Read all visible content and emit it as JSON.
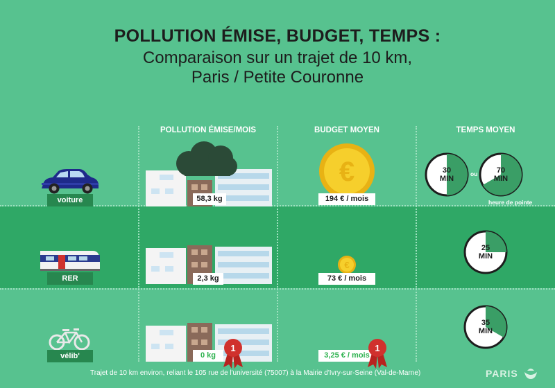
{
  "title": {
    "line1": "POLLUTION ÉMISE, BUDGET, TEMPS :",
    "line2": "Comparaison sur un trajet de 10 km,",
    "line3": "Paris / Petite Couronne"
  },
  "columns": {
    "pollution": "POLLUTION ÉMISE/MOIS",
    "budget": "BUDGET MOYEN",
    "temps": "TEMPS MOYEN"
  },
  "rows": [
    {
      "label": "voiture",
      "pollution": "58,3 kg",
      "budget": "194 € / mois",
      "time1": "30",
      "time2": "70",
      "unit": "MIN",
      "ou": "ou",
      "peak_label": "heure de pointe"
    },
    {
      "label": "RER",
      "pollution": "2,3 kg",
      "budget": "73 € / mois",
      "time1": "25",
      "unit": "MIN"
    },
    {
      "label": "vélib'",
      "pollution": "0 kg",
      "budget": "3,25 € / mois",
      "time1": "35",
      "unit": "MIN"
    }
  ],
  "footer": "Trajet de 10 km environ, reliant le 105 rue de l'université (75007) à la Mairie d'Ivry-sur-Seine (Val-de-Marne)",
  "logo": "PARIS",
  "colors": {
    "background": "#57c28f",
    "middle_band": "#2fa866",
    "label_bg": "#27874f",
    "accent_green": "#2eb24f",
    "coin": "#f3c51a",
    "ribbon": "#d0312d"
  }
}
